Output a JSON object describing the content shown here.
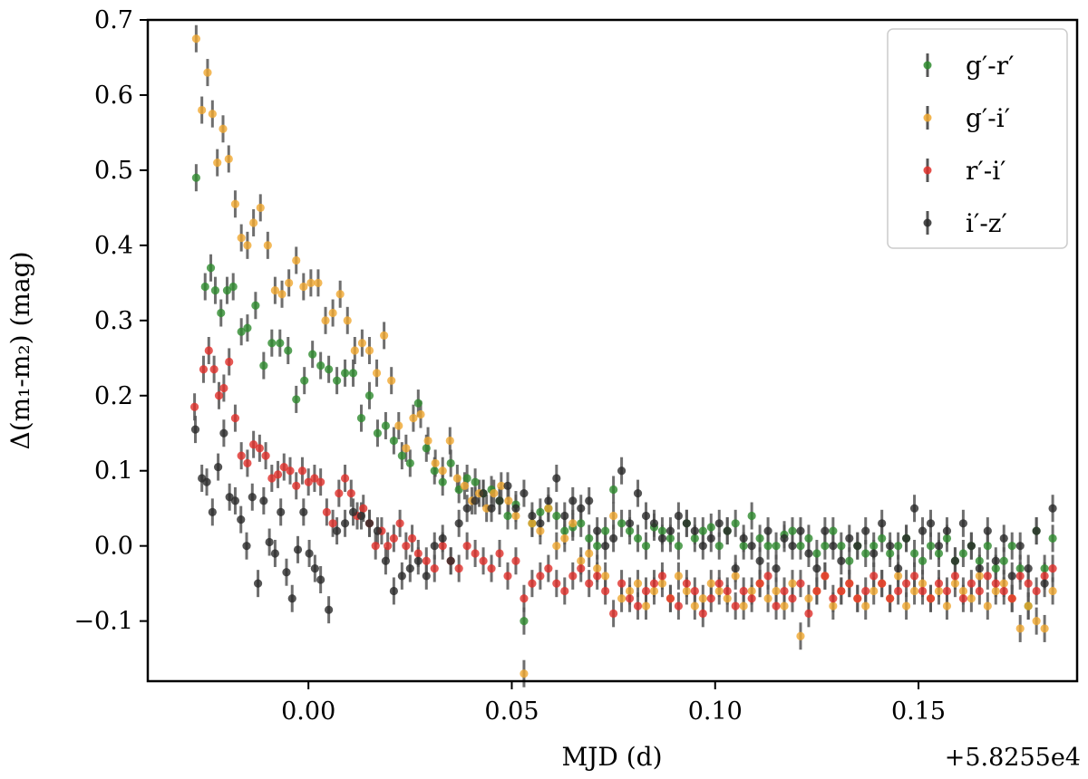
{
  "chart_data": {
    "type": "scatter",
    "title": "",
    "xlabel": "MJD (d)",
    "ylabel": "Δ(m₁-m₂) (mag)",
    "x_offset_label": "+5.8255e4",
    "xlim": [
      -0.0395,
      0.189
    ],
    "ylim": [
      -0.18,
      0.7
    ],
    "xticks": [
      0.0,
      0.05,
      0.1,
      0.15
    ],
    "xtick_labels": [
      "0.00",
      "0.05",
      "0.10",
      "0.15"
    ],
    "yticks": [
      -0.1,
      0.0,
      0.1,
      0.2,
      0.3,
      0.4,
      0.5,
      0.6,
      0.7
    ],
    "ytick_labels": [
      "−0.1",
      "0.0",
      "0.1",
      "0.2",
      "0.3",
      "0.4",
      "0.5",
      "0.6",
      "0.7"
    ],
    "grid": false,
    "legend_position": "top-right",
    "error_bar_color": "#555555",
    "series": [
      {
        "name": "g′-r′",
        "color": "#2e8b2e",
        "x": [
          -0.0276,
          -0.0254,
          -0.024,
          -0.0229,
          -0.0215,
          -0.02,
          -0.0185,
          -0.0165,
          -0.015,
          -0.013,
          -0.011,
          -0.009,
          -0.007,
          -0.005,
          -0.003,
          -0.001,
          0.001,
          0.003,
          0.005,
          0.007,
          0.009,
          0.011,
          0.013,
          0.015,
          0.017,
          0.019,
          0.021,
          0.023,
          0.025,
          0.027,
          0.029,
          0.031,
          0.033,
          0.035,
          0.037,
          0.039,
          0.041,
          0.043,
          0.045,
          0.047,
          0.049,
          0.051,
          0.053,
          0.055,
          0.057,
          0.059,
          0.061,
          0.063,
          0.065,
          0.067,
          0.069,
          0.071,
          0.073,
          0.075,
          0.077,
          0.079,
          0.081,
          0.083,
          0.085,
          0.087,
          0.089,
          0.091,
          0.093,
          0.095,
          0.097,
          0.099,
          0.101,
          0.103,
          0.105,
          0.107,
          0.109,
          0.111,
          0.113,
          0.115,
          0.117,
          0.119,
          0.121,
          0.123,
          0.125,
          0.127,
          0.129,
          0.131,
          0.133,
          0.135,
          0.137,
          0.139,
          0.141,
          0.143,
          0.145,
          0.147,
          0.149,
          0.151,
          0.153,
          0.155,
          0.157,
          0.159,
          0.161,
          0.163,
          0.165,
          0.167,
          0.169,
          0.171,
          0.173,
          0.175,
          0.177,
          0.179,
          0.181,
          0.183
        ],
        "y": [
          0.49,
          0.345,
          0.37,
          0.34,
          0.31,
          0.34,
          0.345,
          0.285,
          0.29,
          0.32,
          0.24,
          0.27,
          0.27,
          0.26,
          0.195,
          0.22,
          0.255,
          0.24,
          0.235,
          0.22,
          0.23,
          0.23,
          0.17,
          0.2,
          0.15,
          0.16,
          0.14,
          0.12,
          0.11,
          0.19,
          0.13,
          0.1,
          0.085,
          0.11,
          0.075,
          0.09,
          0.085,
          0.07,
          0.075,
          0.06,
          0.04,
          0.055,
          -0.1,
          0.03,
          0.045,
          0.05,
          0.04,
          0.02,
          0.025,
          0.03,
          0.01,
          0.0,
          0.02,
          0.075,
          0.03,
          0.02,
          0.01,
          0.0,
          0.025,
          0.02,
          0.01,
          0.0,
          0.03,
          0.01,
          0.02,
          0.025,
          0.0,
          0.02,
          0.03,
          0.0,
          0.04,
          0.01,
          0.0,
          0.0,
          0.015,
          0.02,
          0.0,
          0.01,
          -0.01,
          0.0,
          0.02,
          0.0,
          -0.02,
          0.0,
          -0.01,
          0.0,
          0.01,
          -0.01,
          0.0,
          0.01,
          -0.01,
          -0.02,
          0.0,
          -0.01,
          0.01,
          -0.02,
          -0.01,
          0.0,
          -0.02,
          0.0,
          -0.03,
          -0.02,
          0.0,
          -0.03,
          -0.08,
          0.02,
          -0.03,
          0.01
        ]
      },
      {
        "name": "g′-i′",
        "color": "#f0a830",
        "x": [
          -0.0276,
          -0.0262,
          -0.0248,
          -0.0236,
          -0.0224,
          -0.021,
          -0.0196,
          -0.018,
          -0.0165,
          -0.015,
          -0.0135,
          -0.0118,
          -0.01,
          -0.0082,
          -0.0065,
          -0.0048,
          -0.003,
          -0.0012,
          0.0006,
          0.0024,
          0.0042,
          0.006,
          0.0078,
          0.0096,
          0.0114,
          0.0132,
          0.015,
          0.0168,
          0.0186,
          0.0204,
          0.0222,
          0.024,
          0.0258,
          0.0276,
          0.0294,
          0.0312,
          0.033,
          0.0348,
          0.0366,
          0.0384,
          0.0402,
          0.042,
          0.0438,
          0.0456,
          0.0474,
          0.0492,
          0.051,
          0.053,
          0.055,
          0.057,
          0.059,
          0.061,
          0.063,
          0.065,
          0.067,
          0.069,
          0.071,
          0.073,
          0.075,
          0.077,
          0.079,
          0.081,
          0.083,
          0.085,
          0.087,
          0.089,
          0.091,
          0.093,
          0.095,
          0.097,
          0.099,
          0.101,
          0.103,
          0.105,
          0.107,
          0.109,
          0.111,
          0.113,
          0.115,
          0.117,
          0.119,
          0.121,
          0.123,
          0.125,
          0.127,
          0.129,
          0.131,
          0.133,
          0.135,
          0.137,
          0.139,
          0.141,
          0.143,
          0.145,
          0.147,
          0.149,
          0.151,
          0.153,
          0.155,
          0.157,
          0.159,
          0.161,
          0.163,
          0.165,
          0.167,
          0.169,
          0.171,
          0.173,
          0.175,
          0.177,
          0.179,
          0.181,
          0.183
        ],
        "y": [
          0.675,
          0.58,
          0.63,
          0.575,
          0.51,
          0.555,
          0.515,
          0.455,
          0.41,
          0.4,
          0.43,
          0.45,
          0.4,
          0.34,
          0.335,
          0.35,
          0.38,
          0.345,
          0.35,
          0.35,
          0.3,
          0.31,
          0.335,
          0.3,
          0.26,
          0.27,
          0.26,
          0.23,
          0.28,
          0.22,
          0.16,
          0.13,
          0.17,
          0.175,
          0.14,
          0.11,
          0.1,
          0.14,
          0.09,
          0.08,
          0.06,
          0.07,
          0.05,
          0.07,
          0.08,
          0.06,
          0.04,
          -0.17,
          0.03,
          0.02,
          0.05,
          0.0,
          0.01,
          0.03,
          -0.02,
          -0.01,
          -0.03,
          -0.04,
          0.04,
          -0.07,
          -0.06,
          -0.05,
          -0.08,
          -0.06,
          -0.05,
          -0.07,
          -0.04,
          -0.06,
          -0.08,
          -0.07,
          -0.05,
          -0.06,
          -0.07,
          -0.04,
          -0.08,
          -0.06,
          -0.05,
          -0.07,
          -0.06,
          -0.08,
          -0.05,
          -0.12,
          -0.07,
          -0.06,
          -0.04,
          -0.08,
          -0.06,
          -0.05,
          -0.07,
          -0.08,
          -0.06,
          -0.05,
          -0.07,
          -0.04,
          -0.08,
          -0.06,
          -0.05,
          -0.07,
          -0.06,
          -0.08,
          -0.05,
          -0.06,
          -0.07,
          -0.04,
          -0.08,
          -0.06,
          -0.05,
          -0.07,
          -0.11,
          -0.08,
          -0.1,
          -0.11,
          -0.06
        ]
      },
      {
        "name": "r′-i′",
        "color": "#e0302a",
        "x": [
          -0.028,
          -0.0258,
          -0.0245,
          -0.0232,
          -0.022,
          -0.0208,
          -0.0195,
          -0.018,
          -0.0165,
          -0.015,
          -0.0135,
          -0.012,
          -0.0105,
          -0.009,
          -0.0075,
          -0.006,
          -0.0045,
          -0.003,
          -0.0015,
          0.0,
          0.0015,
          0.003,
          0.0045,
          0.006,
          0.0075,
          0.009,
          0.0105,
          0.012,
          0.0135,
          0.015,
          0.0165,
          0.018,
          0.0195,
          0.021,
          0.0225,
          0.024,
          0.0255,
          0.027,
          0.029,
          0.031,
          0.033,
          0.035,
          0.037,
          0.039,
          0.041,
          0.043,
          0.045,
          0.047,
          0.049,
          0.051,
          0.053,
          0.055,
          0.057,
          0.059,
          0.061,
          0.063,
          0.065,
          0.067,
          0.069,
          0.071,
          0.073,
          0.075,
          0.077,
          0.079,
          0.081,
          0.083,
          0.085,
          0.087,
          0.089,
          0.091,
          0.093,
          0.095,
          0.097,
          0.099,
          0.101,
          0.103,
          0.105,
          0.107,
          0.109,
          0.111,
          0.113,
          0.115,
          0.117,
          0.119,
          0.121,
          0.123,
          0.125,
          0.127,
          0.129,
          0.131,
          0.133,
          0.135,
          0.137,
          0.139,
          0.141,
          0.143,
          0.145,
          0.147,
          0.149,
          0.151,
          0.153,
          0.155,
          0.157,
          0.159,
          0.161,
          0.163,
          0.165,
          0.167,
          0.169,
          0.171,
          0.173,
          0.175,
          0.177,
          0.179,
          0.181,
          0.183
        ],
        "y": [
          0.185,
          0.235,
          0.26,
          0.235,
          0.2,
          0.21,
          0.245,
          0.17,
          0.12,
          0.11,
          0.135,
          0.13,
          0.12,
          0.09,
          0.095,
          0.105,
          0.1,
          0.08,
          0.1,
          0.085,
          0.09,
          0.085,
          0.045,
          0.03,
          0.07,
          0.09,
          0.07,
          0.04,
          0.05,
          0.03,
          0.0,
          0.02,
          0.0,
          0.01,
          0.03,
          0.0,
          0.01,
          -0.01,
          -0.02,
          -0.03,
          0.0,
          -0.02,
          -0.03,
          0.0,
          -0.01,
          -0.02,
          -0.03,
          -0.01,
          -0.04,
          -0.02,
          -0.07,
          -0.05,
          -0.04,
          -0.03,
          -0.05,
          -0.06,
          -0.04,
          -0.03,
          -0.05,
          -0.04,
          -0.06,
          -0.09,
          -0.05,
          -0.07,
          -0.08,
          -0.06,
          -0.05,
          -0.04,
          -0.07,
          -0.08,
          -0.05,
          -0.06,
          -0.09,
          -0.07,
          -0.05,
          -0.06,
          -0.08,
          -0.06,
          -0.07,
          -0.05,
          -0.04,
          -0.08,
          -0.06,
          -0.07,
          -0.05,
          -0.09,
          -0.06,
          -0.04,
          -0.07,
          -0.06,
          -0.05,
          -0.07,
          -0.06,
          -0.04,
          -0.05,
          -0.07,
          -0.06,
          -0.05,
          -0.04,
          -0.06,
          -0.07,
          -0.05,
          -0.06,
          -0.04,
          -0.07,
          -0.05,
          -0.06,
          -0.04,
          -0.05,
          -0.06,
          -0.07,
          -0.04,
          -0.05,
          -0.06,
          -0.04,
          -0.03
        ]
      },
      {
        "name": "i′-z′",
        "color": "#2a2a2a",
        "x": [
          -0.0278,
          -0.0262,
          -0.025,
          -0.0236,
          -0.0222,
          -0.0208,
          -0.0194,
          -0.018,
          -0.0166,
          -0.0152,
          -0.0138,
          -0.0124,
          -0.011,
          -0.0096,
          -0.0082,
          -0.0068,
          -0.0054,
          -0.004,
          -0.0026,
          -0.0012,
          0.0002,
          0.0016,
          0.003,
          0.005,
          0.007,
          0.009,
          0.011,
          0.013,
          0.015,
          0.017,
          0.019,
          0.021,
          0.023,
          0.025,
          0.027,
          0.029,
          0.031,
          0.033,
          0.035,
          0.037,
          0.039,
          0.041,
          0.043,
          0.045,
          0.047,
          0.049,
          0.051,
          0.053,
          0.055,
          0.057,
          0.059,
          0.061,
          0.063,
          0.065,
          0.067,
          0.069,
          0.071,
          0.073,
          0.075,
          0.077,
          0.079,
          0.081,
          0.083,
          0.085,
          0.087,
          0.089,
          0.091,
          0.093,
          0.095,
          0.097,
          0.099,
          0.101,
          0.103,
          0.105,
          0.107,
          0.109,
          0.111,
          0.113,
          0.115,
          0.117,
          0.119,
          0.121,
          0.123,
          0.125,
          0.127,
          0.129,
          0.131,
          0.133,
          0.135,
          0.137,
          0.139,
          0.141,
          0.143,
          0.145,
          0.147,
          0.149,
          0.151,
          0.153,
          0.155,
          0.157,
          0.159,
          0.161,
          0.163,
          0.165,
          0.167,
          0.169,
          0.171,
          0.173,
          0.175,
          0.177,
          0.179,
          0.181,
          0.183
        ],
        "y": [
          0.155,
          0.09,
          0.085,
          0.045,
          0.105,
          0.15,
          0.065,
          0.06,
          0.035,
          0.0,
          0.065,
          -0.05,
          0.06,
          0.005,
          -0.01,
          0.045,
          -0.035,
          -0.07,
          -0.005,
          0.045,
          -0.01,
          -0.03,
          -0.045,
          -0.085,
          0.02,
          0.03,
          0.045,
          0.04,
          0.03,
          0.02,
          -0.02,
          -0.06,
          -0.04,
          -0.03,
          -0.02,
          -0.04,
          0.0,
          0.01,
          -0.02,
          0.03,
          0.05,
          0.06,
          0.07,
          0.05,
          0.06,
          0.08,
          0.05,
          0.07,
          0.04,
          0.03,
          0.06,
          0.09,
          0.04,
          0.06,
          0.05,
          0.06,
          0.02,
          0.0,
          0.01,
          0.1,
          0.03,
          0.07,
          0.04,
          0.03,
          0.01,
          0.02,
          0.04,
          0.03,
          0.02,
          0.0,
          0.01,
          0.03,
          0.02,
          -0.03,
          0.01,
          0.0,
          -0.02,
          0.02,
          -0.03,
          0.01,
          0.0,
          0.02,
          -0.01,
          -0.03,
          0.02,
          0.0,
          -0.02,
          0.01,
          0.0,
          0.02,
          -0.01,
          0.03,
          0.0,
          -0.03,
          0.01,
          0.05,
          0.02,
          0.03,
          0.0,
          0.02,
          -0.02,
          0.03,
          0.0,
          -0.03,
          0.02,
          -0.02,
          0.01,
          -0.04,
          0.0,
          -0.03,
          0.02,
          -0.05,
          0.05
        ]
      }
    ]
  }
}
